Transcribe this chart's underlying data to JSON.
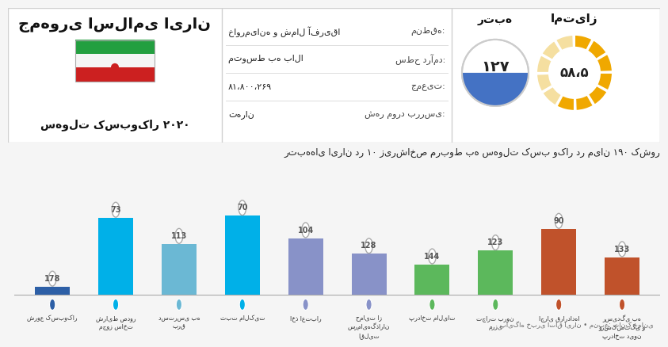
{
  "title_persian": "جمهوری اسلامی ایران",
  "subtitle_persian": "سهولت کسب‌وکار ۲۰۲۰",
  "info_labels": [
    "منطقه:",
    "سطح درآمد:",
    "جمعیت:",
    "شهر مورد بررسی:"
  ],
  "info_values": [
    "خاورمیانه و شمال آفریقا",
    "متوسط به بالا",
    "۸۱،۸۰۰،۲۶۹",
    "تهران"
  ],
  "rank_label": "رتبه",
  "score_label": "امتیاز",
  "rank_value": "۱۲۷",
  "score_value": "۵۸،۵",
  "chart_title": "رتبه‌های ایران در ۱۰ زیرشاخص مربوط به سهولت کسب وکار در میان ۱۹۰ کشور",
  "categories": [
    "شروع کسب‌وکار",
    "شرایط صدور\nمجوز ساخت",
    "دسترسی به\nبرق",
    "ثبت مالکیت",
    "اخذ اعتبار",
    "حمایت از\nسرمایهگذاران\nاقلیت",
    "پرداخت مالیات",
    "تجارت برون\nمرزی",
    "اجرای قراردادها",
    "رسیدگی به\nورشکستگی و\nپرداخت دیون"
  ],
  "values": [
    178,
    73,
    113,
    70,
    104,
    128,
    144,
    123,
    90,
    133
  ],
  "bar_colors": [
    "#2d5fa6",
    "#00b0e8",
    "#6bb8d4",
    "#00b0e8",
    "#8892c8",
    "#8892c8",
    "#5cb85c",
    "#5cb85c",
    "#c0522b",
    "#c0522b"
  ],
  "footer": "پایگاه خبری اتاق ایران • منبع: بانک جهانی",
  "score_pct": 58.5,
  "score_max": 100,
  "header_bg": "#ffffff",
  "chart_bg": "#f5f5f5",
  "border_color": "#d0d0d0"
}
